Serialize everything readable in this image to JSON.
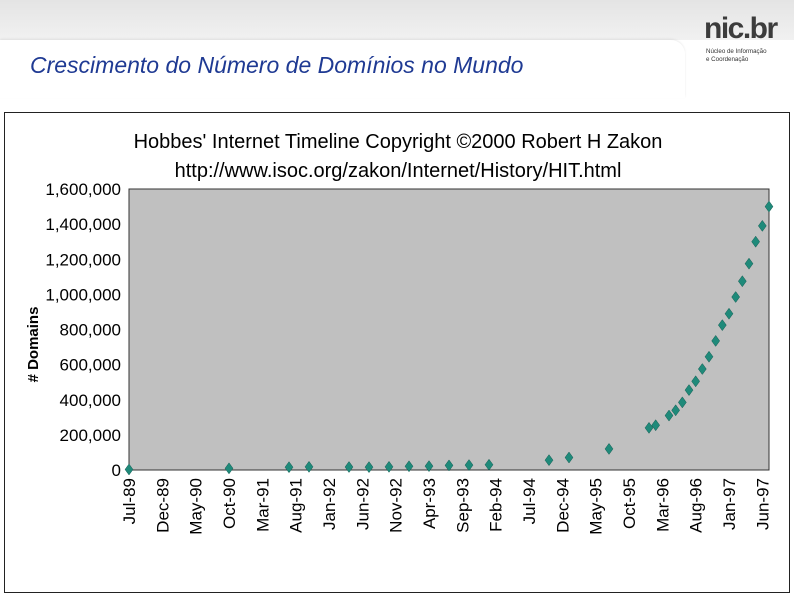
{
  "slide": {
    "title": "Crescimento do Número de Domínios no Mundo"
  },
  "logo": {
    "name": "nic.br",
    "line1": "Núcleo de Informação",
    "line2": "e Coordenação"
  },
  "colors": {
    "title": "#1f3a93",
    "plot_bg": "#c0c0c0",
    "marker": "#1f8a7a"
  },
  "chart_data": {
    "type": "scatter",
    "title": "Hobbes' Internet Timeline Copyright ©2000 Robert H Zakon",
    "subtitle": "http://www.isoc.org/zakon/Internet/History/HIT.html",
    "xlabel": "",
    "ylabel": "# Domains",
    "ylim": [
      0,
      1600000
    ],
    "yticks": [
      0,
      200000,
      400000,
      600000,
      800000,
      1000000,
      1200000,
      1400000,
      1600000
    ],
    "ytick_labels": [
      "0",
      "200,000",
      "400,000",
      "600,000",
      "800,000",
      "1,000,000",
      "1,200,000",
      "1,400,000",
      "1,600,000"
    ],
    "xlim": [
      "1989-07",
      "1997-07"
    ],
    "xtick_labels": [
      "Jul-89",
      "Dec-89",
      "May-90",
      "Oct-90",
      "Mar-91",
      "Aug-91",
      "Jan-92",
      "Jun-92",
      "Nov-92",
      "Apr-93",
      "Sep-93",
      "Feb-94",
      "Jul-94",
      "Dec-94",
      "May-95",
      "Oct-95",
      "Mar-96",
      "Aug-96",
      "Jan-97",
      "Jun-97"
    ],
    "xtick_dates": [
      "1989-07",
      "1989-12",
      "1990-05",
      "1990-10",
      "1991-03",
      "1991-08",
      "1992-01",
      "1992-06",
      "1992-11",
      "1993-04",
      "1993-09",
      "1994-02",
      "1994-07",
      "1994-12",
      "1995-05",
      "1995-10",
      "1996-03",
      "1996-08",
      "1997-01",
      "1997-06"
    ],
    "grid": false,
    "legend": "none",
    "points": [
      {
        "x": "1989-07",
        "y": 3000
      },
      {
        "x": "1990-10",
        "y": 9300
      },
      {
        "x": "1991-07",
        "y": 16000
      },
      {
        "x": "1991-10",
        "y": 18000
      },
      {
        "x": "1992-04",
        "y": 17000
      },
      {
        "x": "1992-07",
        "y": 16300
      },
      {
        "x": "1992-10",
        "y": 18100
      },
      {
        "x": "1993-01",
        "y": 21000
      },
      {
        "x": "1993-04",
        "y": 22000
      },
      {
        "x": "1993-07",
        "y": 26000
      },
      {
        "x": "1993-10",
        "y": 28000
      },
      {
        "x": "1994-01",
        "y": 30000
      },
      {
        "x": "1994-10",
        "y": 56000
      },
      {
        "x": "1995-01",
        "y": 71000
      },
      {
        "x": "1995-07",
        "y": 120000
      },
      {
        "x": "1996-01",
        "y": 240000
      },
      {
        "x": "1996-02",
        "y": 255000
      },
      {
        "x": "1996-04",
        "y": 310000
      },
      {
        "x": "1996-05",
        "y": 340000
      },
      {
        "x": "1996-06",
        "y": 385000
      },
      {
        "x": "1996-07",
        "y": 455000
      },
      {
        "x": "1996-08",
        "y": 505000
      },
      {
        "x": "1996-09",
        "y": 575000
      },
      {
        "x": "1996-10",
        "y": 645000
      },
      {
        "x": "1996-11",
        "y": 735000
      },
      {
        "x": "1996-12",
        "y": 825000
      },
      {
        "x": "1997-01",
        "y": 890000
      },
      {
        "x": "1997-02",
        "y": 985000
      },
      {
        "x": "1997-03",
        "y": 1075000
      },
      {
        "x": "1997-04",
        "y": 1175000
      },
      {
        "x": "1997-05",
        "y": 1300000
      },
      {
        "x": "1997-06",
        "y": 1390000
      },
      {
        "x": "1997-07",
        "y": 1500000
      }
    ]
  }
}
